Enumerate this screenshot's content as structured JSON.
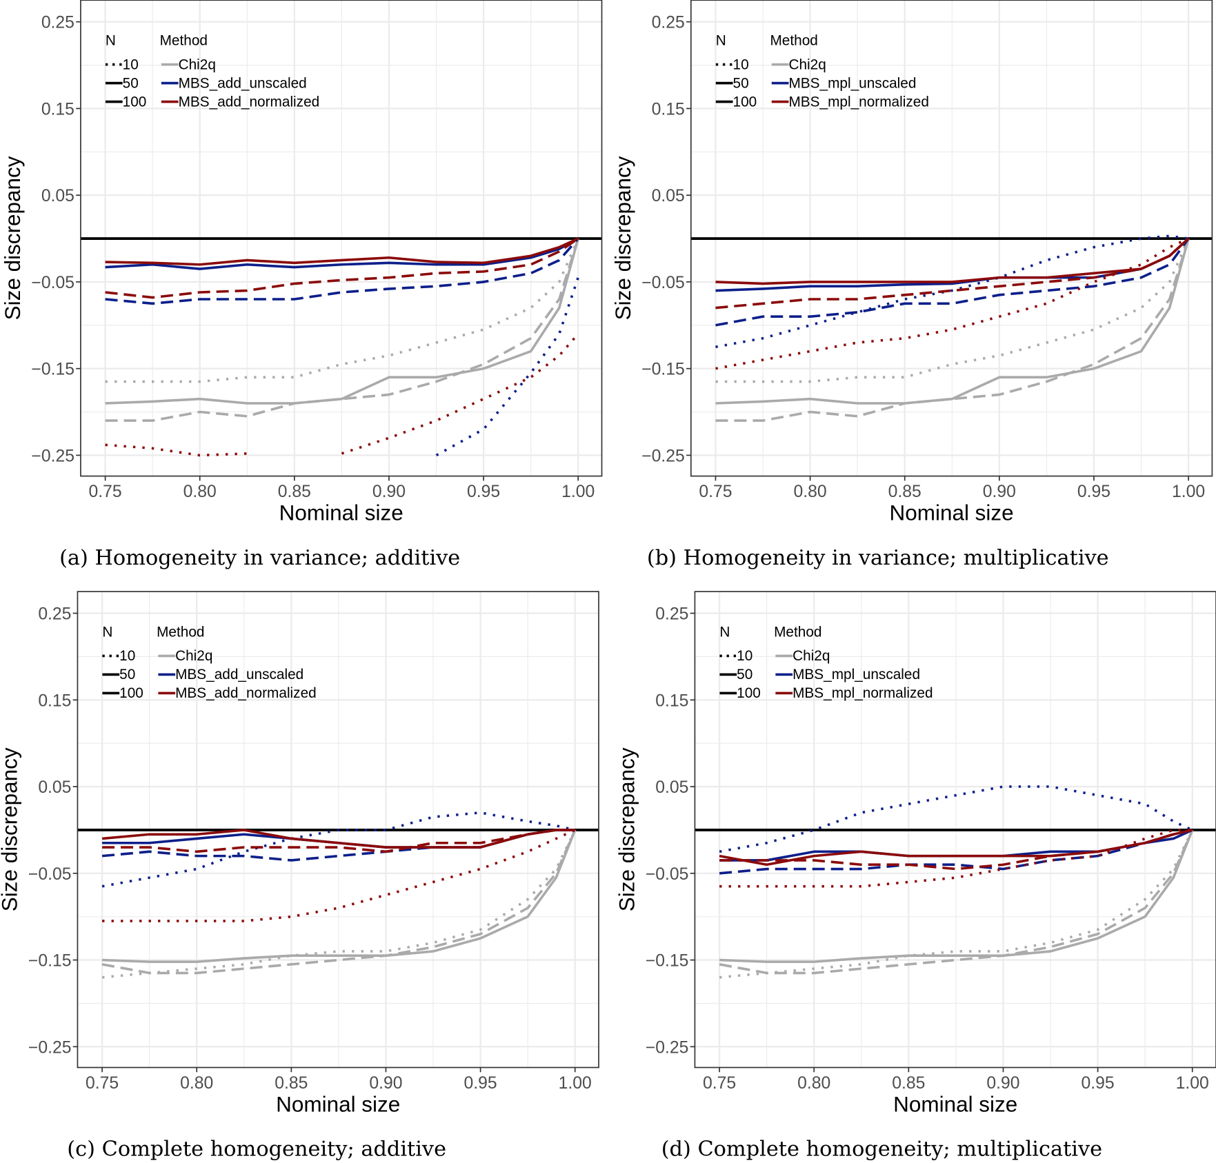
{
  "chart_data": [
    {
      "type": "line",
      "caption": "(a) Homogeneity in variance; additive",
      "xlabel": "Nominal size",
      "ylabel": "Size discrepancy",
      "xlim": [
        0.737,
        1.0125
      ],
      "ylim": [
        -0.274,
        0.275
      ],
      "xticks": [
        "0.75",
        "0.80",
        "0.85",
        "0.90",
        "0.95",
        "1.00"
      ],
      "yticks": [
        "0.25",
        "0.15",
        "0.05",
        "−0.05",
        "−0.15",
        "−0.25"
      ],
      "reference_line": 0,
      "legend": {
        "n_title": "N",
        "method_title": "Method",
        "n_labels": [
          "10",
          "50",
          "100"
        ],
        "methods": [
          "Chi2q",
          "MBS_add_unscaled",
          "MBS_add_normalized"
        ],
        "position": "top-left"
      },
      "x": [
        0.75,
        0.775,
        0.8,
        0.825,
        0.85,
        0.875,
        0.9,
        0.925,
        0.95,
        0.975,
        0.99,
        1.0
      ],
      "series": [
        {
          "method": "Chi2q",
          "N": "100",
          "values": [
            -0.19,
            -0.188,
            -0.185,
            -0.19,
            -0.19,
            -0.185,
            -0.16,
            -0.16,
            -0.15,
            -0.13,
            -0.08,
            0
          ]
        },
        {
          "method": "Chi2q",
          "N": "50",
          "values": [
            -0.21,
            -0.21,
            -0.2,
            -0.205,
            -0.19,
            -0.185,
            -0.18,
            -0.165,
            -0.145,
            -0.115,
            -0.07,
            0
          ]
        },
        {
          "method": "Chi2q",
          "N": "10",
          "values": [
            -0.165,
            -0.165,
            -0.165,
            -0.16,
            -0.16,
            -0.145,
            -0.135,
            -0.12,
            -0.105,
            -0.08,
            -0.05,
            0
          ]
        },
        {
          "method": "MBS_add_unscaled",
          "N": "100",
          "values": [
            -0.033,
            -0.03,
            -0.035,
            -0.03,
            -0.033,
            -0.03,
            -0.028,
            -0.03,
            -0.03,
            -0.022,
            -0.012,
            0
          ]
        },
        {
          "method": "MBS_add_unscaled",
          "N": "50",
          "values": [
            -0.07,
            -0.075,
            -0.07,
            -0.07,
            -0.07,
            -0.062,
            -0.058,
            -0.055,
            -0.05,
            -0.04,
            -0.025,
            0
          ]
        },
        {
          "method": "MBS_add_unscaled",
          "N": "10",
          "values": [
            null,
            null,
            null,
            null,
            null,
            null,
            null,
            -0.25,
            -0.22,
            -0.155,
            -0.11,
            -0.045
          ]
        },
        {
          "method": "MBS_add_normalized",
          "N": "100",
          "values": [
            -0.027,
            -0.028,
            -0.03,
            -0.025,
            -0.028,
            -0.025,
            -0.022,
            -0.027,
            -0.028,
            -0.02,
            -0.01,
            0
          ]
        },
        {
          "method": "MBS_add_normalized",
          "N": "50",
          "values": [
            -0.062,
            -0.068,
            -0.062,
            -0.06,
            -0.052,
            -0.048,
            -0.045,
            -0.04,
            -0.038,
            -0.03,
            -0.015,
            0
          ]
        },
        {
          "method": "MBS_add_normalized",
          "N": "10",
          "values": [
            -0.238,
            -0.242,
            -0.25,
            -0.248,
            null,
            -0.248,
            -0.23,
            -0.21,
            -0.185,
            -0.16,
            -0.135,
            -0.11
          ]
        }
      ]
    },
    {
      "type": "line",
      "caption": "(b) Homogeneity in variance; multiplicative",
      "xlabel": "Nominal size",
      "ylabel": "Size discrepancy",
      "xlim": [
        0.737,
        1.0125
      ],
      "ylim": [
        -0.274,
        0.275
      ],
      "xticks": [
        "0.75",
        "0.80",
        "0.85",
        "0.90",
        "0.95",
        "1.00"
      ],
      "yticks": [
        "0.25",
        "0.15",
        "0.05",
        "−0.05",
        "−0.15",
        "−0.25"
      ],
      "reference_line": 0,
      "legend": {
        "n_title": "N",
        "method_title": "Method",
        "n_labels": [
          "10",
          "50",
          "100"
        ],
        "methods": [
          "Chi2q",
          "MBS_mpl_unscaled",
          "MBS_mpl_normalized"
        ],
        "position": "top-left"
      },
      "x": [
        0.75,
        0.775,
        0.8,
        0.825,
        0.85,
        0.875,
        0.9,
        0.925,
        0.95,
        0.975,
        0.99,
        1.0
      ],
      "series": [
        {
          "method": "Chi2q",
          "N": "100",
          "values": [
            -0.19,
            -0.188,
            -0.185,
            -0.19,
            -0.19,
            -0.185,
            -0.16,
            -0.16,
            -0.15,
            -0.13,
            -0.08,
            0
          ]
        },
        {
          "method": "Chi2q",
          "N": "50",
          "values": [
            -0.21,
            -0.21,
            -0.2,
            -0.205,
            -0.19,
            -0.185,
            -0.18,
            -0.165,
            -0.145,
            -0.115,
            -0.07,
            0
          ]
        },
        {
          "method": "Chi2q",
          "N": "10",
          "values": [
            -0.165,
            -0.165,
            -0.165,
            -0.16,
            -0.16,
            -0.145,
            -0.135,
            -0.12,
            -0.105,
            -0.08,
            -0.05,
            0
          ]
        },
        {
          "method": "MBS_mpl_unscaled",
          "N": "100",
          "values": [
            -0.06,
            -0.058,
            -0.055,
            -0.055,
            -0.053,
            -0.052,
            -0.045,
            -0.045,
            -0.045,
            -0.035,
            -0.02,
            0
          ]
        },
        {
          "method": "MBS_mpl_unscaled",
          "N": "50",
          "values": [
            -0.1,
            -0.09,
            -0.09,
            -0.085,
            -0.075,
            -0.075,
            -0.065,
            -0.06,
            -0.055,
            -0.045,
            -0.03,
            0
          ]
        },
        {
          "method": "MBS_mpl_unscaled",
          "N": "10",
          "values": [
            -0.125,
            -0.115,
            -0.1,
            -0.085,
            -0.07,
            -0.06,
            -0.045,
            -0.025,
            -0.01,
            0,
            0.003,
            0
          ]
        },
        {
          "method": "MBS_mpl_normalized",
          "N": "100",
          "values": [
            -0.05,
            -0.052,
            -0.05,
            -0.05,
            -0.05,
            -0.05,
            -0.045,
            -0.045,
            -0.04,
            -0.035,
            -0.02,
            0
          ]
        },
        {
          "method": "MBS_mpl_normalized",
          "N": "50",
          "values": [
            -0.08,
            -0.075,
            -0.07,
            -0.07,
            -0.065,
            -0.06,
            -0.055,
            -0.05,
            -0.045,
            -0.035,
            -0.02,
            0
          ]
        },
        {
          "method": "MBS_mpl_normalized",
          "N": "10",
          "values": [
            -0.15,
            -0.14,
            -0.13,
            -0.12,
            -0.115,
            -0.105,
            -0.09,
            -0.075,
            -0.05,
            -0.03,
            -0.01,
            0
          ]
        }
      ]
    },
    {
      "type": "line",
      "caption": "(c) Complete homogeneity; additive",
      "xlabel": "Nominal size",
      "ylabel": "Size discrepancy",
      "xlim": [
        0.737,
        1.0125
      ],
      "ylim": [
        -0.274,
        0.275
      ],
      "xticks": [
        "0.75",
        "0.80",
        "0.85",
        "0.90",
        "0.95",
        "1.00"
      ],
      "yticks": [
        "0.25",
        "0.15",
        "0.05",
        "−0.05",
        "−0.15",
        "−0.25"
      ],
      "reference_line": 0,
      "legend": {
        "n_title": "N",
        "method_title": "Method",
        "n_labels": [
          "10",
          "50",
          "100"
        ],
        "methods": [
          "Chi2q",
          "MBS_add_unscaled",
          "MBS_add_normalized"
        ],
        "position": "top-left"
      },
      "x": [
        0.75,
        0.775,
        0.8,
        0.825,
        0.85,
        0.875,
        0.9,
        0.925,
        0.95,
        0.975,
        0.99,
        1.0
      ],
      "series": [
        {
          "method": "Chi2q",
          "N": "100",
          "values": [
            -0.15,
            -0.152,
            -0.152,
            -0.148,
            -0.145,
            -0.145,
            -0.145,
            -0.14,
            -0.125,
            -0.1,
            -0.055,
            0
          ]
        },
        {
          "method": "Chi2q",
          "N": "50",
          "values": [
            -0.155,
            -0.165,
            -0.165,
            -0.16,
            -0.155,
            -0.15,
            -0.145,
            -0.135,
            -0.12,
            -0.09,
            -0.05,
            0
          ]
        },
        {
          "method": "Chi2q",
          "N": "10",
          "values": [
            -0.17,
            -0.165,
            -0.16,
            -0.155,
            -0.145,
            -0.14,
            -0.14,
            -0.13,
            -0.115,
            -0.08,
            -0.045,
            0
          ]
        },
        {
          "method": "MBS_add_unscaled",
          "N": "100",
          "values": [
            -0.015,
            -0.015,
            -0.01,
            -0.005,
            -0.01,
            -0.015,
            -0.02,
            -0.02,
            -0.02,
            -0.005,
            0,
            0
          ]
        },
        {
          "method": "MBS_add_unscaled",
          "N": "50",
          "values": [
            -0.03,
            -0.025,
            -0.03,
            -0.03,
            -0.035,
            -0.03,
            -0.025,
            -0.02,
            -0.02,
            -0.005,
            0,
            0
          ]
        },
        {
          "method": "MBS_add_unscaled",
          "N": "10",
          "values": [
            -0.065,
            -0.055,
            -0.045,
            -0.025,
            -0.01,
            0,
            0,
            0.015,
            0.02,
            0.01,
            0.005,
            0
          ]
        },
        {
          "method": "MBS_add_normalized",
          "N": "100",
          "values": [
            -0.01,
            -0.005,
            -0.005,
            0,
            -0.01,
            -0.015,
            -0.02,
            -0.02,
            -0.02,
            -0.005,
            0,
            0
          ]
        },
        {
          "method": "MBS_add_normalized",
          "N": "50",
          "values": [
            -0.02,
            -0.02,
            -0.025,
            -0.02,
            -0.02,
            -0.02,
            -0.025,
            -0.015,
            -0.015,
            -0.005,
            0,
            0
          ]
        },
        {
          "method": "MBS_add_normalized",
          "N": "10",
          "values": [
            -0.105,
            -0.105,
            -0.105,
            -0.105,
            -0.1,
            -0.09,
            -0.075,
            -0.06,
            -0.045,
            -0.025,
            -0.01,
            0
          ]
        }
      ]
    },
    {
      "type": "line",
      "caption": "(d) Complete homogeneity; multiplicative",
      "xlabel": "Nominal size",
      "ylabel": "Size discrepancy",
      "xlim": [
        0.737,
        1.0125
      ],
      "ylim": [
        -0.274,
        0.275
      ],
      "xticks": [
        "0.75",
        "0.80",
        "0.85",
        "0.90",
        "0.95",
        "1.00"
      ],
      "yticks": [
        "0.25",
        "0.15",
        "0.05",
        "−0.05",
        "−0.15",
        "−0.25"
      ],
      "reference_line": 0,
      "legend": {
        "n_title": "N",
        "method_title": "Method",
        "n_labels": [
          "10",
          "50",
          "100"
        ],
        "methods": [
          "Chi2q",
          "MBS_mpl_unscaled",
          "MBS_mpl_normalized"
        ],
        "position": "top-left"
      },
      "x": [
        0.75,
        0.775,
        0.8,
        0.825,
        0.85,
        0.875,
        0.9,
        0.925,
        0.95,
        0.975,
        0.99,
        1.0
      ],
      "series": [
        {
          "method": "Chi2q",
          "N": "100",
          "values": [
            -0.15,
            -0.152,
            -0.152,
            -0.148,
            -0.145,
            -0.145,
            -0.145,
            -0.14,
            -0.125,
            -0.1,
            -0.055,
            0
          ]
        },
        {
          "method": "Chi2q",
          "N": "50",
          "values": [
            -0.155,
            -0.165,
            -0.165,
            -0.16,
            -0.155,
            -0.15,
            -0.145,
            -0.135,
            -0.12,
            -0.09,
            -0.05,
            0
          ]
        },
        {
          "method": "Chi2q",
          "N": "10",
          "values": [
            -0.17,
            -0.165,
            -0.16,
            -0.155,
            -0.145,
            -0.14,
            -0.14,
            -0.13,
            -0.115,
            -0.08,
            -0.045,
            0
          ]
        },
        {
          "method": "MBS_mpl_unscaled",
          "N": "100",
          "values": [
            -0.035,
            -0.035,
            -0.025,
            -0.025,
            -0.03,
            -0.03,
            -0.03,
            -0.025,
            -0.025,
            -0.015,
            -0.01,
            0
          ]
        },
        {
          "method": "MBS_mpl_unscaled",
          "N": "50",
          "values": [
            -0.05,
            -0.045,
            -0.045,
            -0.045,
            -0.04,
            -0.04,
            -0.045,
            -0.035,
            -0.03,
            -0.015,
            -0.005,
            0
          ]
        },
        {
          "method": "MBS_mpl_unscaled",
          "N": "10",
          "values": [
            -0.025,
            -0.015,
            0,
            0.02,
            0.03,
            0.04,
            0.05,
            0.05,
            0.04,
            0.03,
            0.01,
            0
          ]
        },
        {
          "method": "MBS_mpl_normalized",
          "N": "100",
          "values": [
            -0.03,
            -0.04,
            -0.03,
            -0.025,
            -0.03,
            -0.03,
            -0.03,
            -0.03,
            -0.025,
            -0.015,
            -0.005,
            0
          ]
        },
        {
          "method": "MBS_mpl_normalized",
          "N": "50",
          "values": [
            -0.035,
            -0.035,
            -0.035,
            -0.04,
            -0.04,
            -0.045,
            -0.04,
            -0.03,
            -0.025,
            -0.015,
            -0.005,
            0
          ]
        },
        {
          "method": "MBS_mpl_normalized",
          "N": "10",
          "values": [
            -0.065,
            -0.065,
            -0.065,
            -0.065,
            -0.06,
            -0.055,
            -0.045,
            -0.035,
            -0.03,
            -0.01,
            0,
            0
          ]
        }
      ]
    }
  ],
  "colors": {
    "Chi2q": "#aaaaaa",
    "unscaled": "#0c1f8a",
    "normalized": "#8b0a0a",
    "grid": "#ebebeb",
    "reference": "#000000"
  }
}
